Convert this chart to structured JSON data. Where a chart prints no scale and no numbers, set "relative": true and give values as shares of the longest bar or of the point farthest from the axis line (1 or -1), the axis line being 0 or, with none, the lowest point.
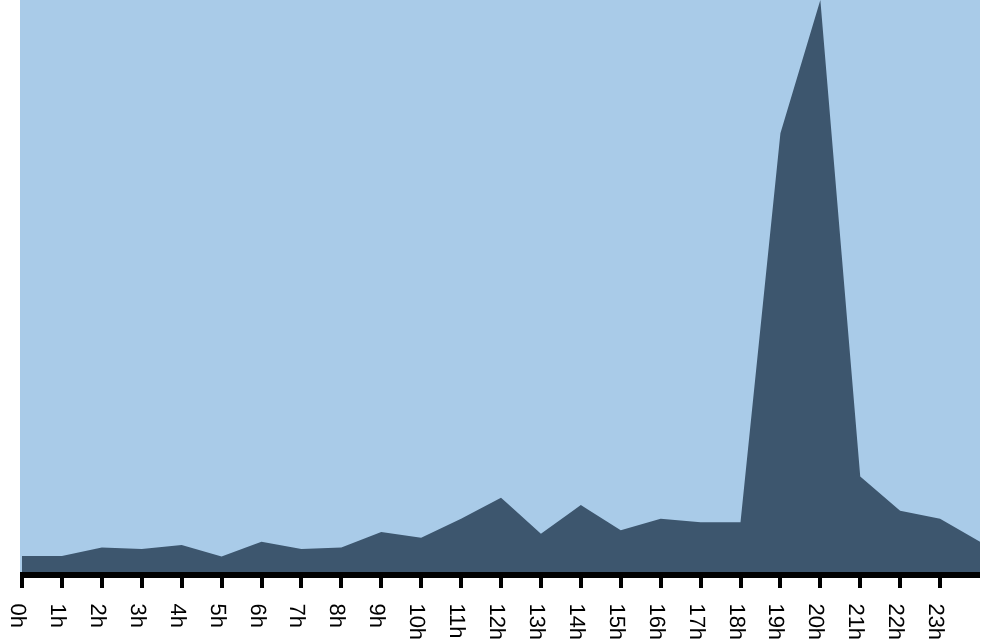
{
  "chart_data": {
    "type": "area",
    "relative": true,
    "categories": [
      "0h",
      "1h",
      "2h",
      "3h",
      "4h",
      "5h",
      "6h",
      "7h",
      "8h",
      "9h",
      "10h",
      "11h",
      "12h",
      "13h",
      "14h",
      "15h",
      "16h",
      "17h",
      "18h",
      "19h",
      "20h",
      "21h",
      "22h",
      "23h",
      null
    ],
    "series": [
      {
        "color": "#3d566e",
        "values": [
          0.028,
          0.028,
          0.043,
          0.04,
          0.047,
          0.027,
          0.053,
          0.04,
          0.043,
          0.07,
          0.06,
          0.093,
          0.13,
          0.067,
          0.117,
          0.073,
          0.093,
          0.087,
          0.087,
          0.767,
          1,
          0.167,
          0.107,
          0.093,
          0.053
        ]
      }
    ],
    "grid": false,
    "legend": false
  }
}
